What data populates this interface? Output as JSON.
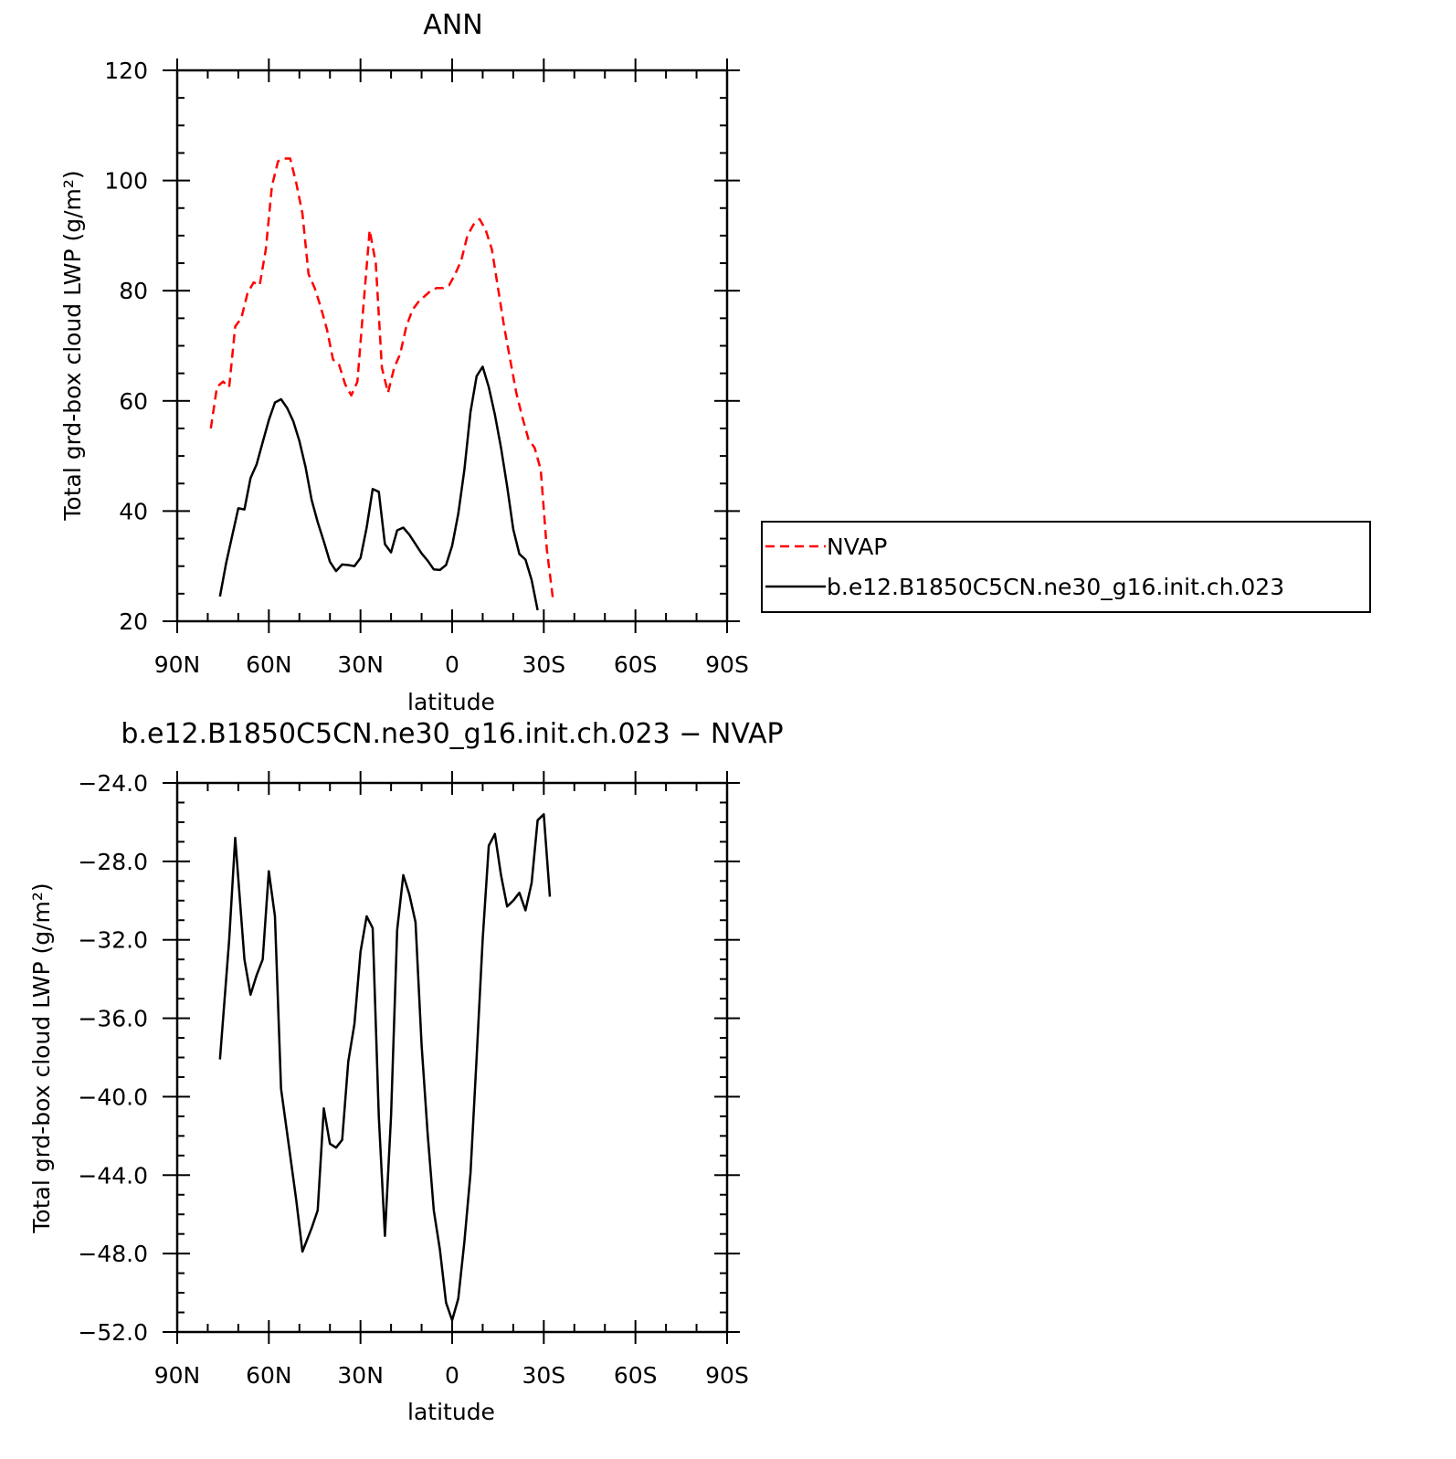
{
  "chart_data": [
    {
      "type": "line",
      "title": "ANN",
      "xlabel": "latitude",
      "ylabel": "Total grd-box cloud LWP (g/m²)",
      "x_ticks": [
        {
          "value": 90,
          "label": "90N"
        },
        {
          "value": 60,
          "label": "60N"
        },
        {
          "value": 30,
          "label": "30N"
        },
        {
          "value": 0,
          "label": "0"
        },
        {
          "value": -30,
          "label": "30S"
        },
        {
          "value": -60,
          "label": "60S"
        },
        {
          "value": -90,
          "label": "90S"
        }
      ],
      "xlim": [
        90,
        -90
      ],
      "ylim": [
        20,
        120
      ],
      "y_ticks": [
        {
          "value": 20,
          "label": "20"
        },
        {
          "value": 40,
          "label": "40"
        },
        {
          "value": 60,
          "label": "60"
        },
        {
          "value": 80,
          "label": "80"
        },
        {
          "value": 100,
          "label": "100"
        },
        {
          "value": 120,
          "label": "120"
        }
      ],
      "legend_position": "right",
      "series": [
        {
          "name": "NVAP",
          "color": "#ff0000",
          "dash": "dashed",
          "points": [
            [
              79,
              55
            ],
            [
              77,
              62.5
            ],
            [
              75,
              63.5
            ],
            [
              73,
              62.5
            ],
            [
              71,
              73.5
            ],
            [
              69,
              75
            ],
            [
              67,
              79.5
            ],
            [
              65,
              81.5
            ],
            [
              63,
              81
            ],
            [
              61,
              87.5
            ],
            [
              59,
              99
            ],
            [
              57,
              103.5
            ],
            [
              55,
              104
            ],
            [
              53,
              104
            ],
            [
              51,
              99.5
            ],
            [
              49,
              94
            ],
            [
              47,
              83
            ],
            [
              45,
              80.5
            ],
            [
              43,
              77
            ],
            [
              41,
              73
            ],
            [
              39,
              67.5
            ],
            [
              37,
              66.5
            ],
            [
              35,
              63
            ],
            [
              33,
              61
            ],
            [
              31,
              63.5
            ],
            [
              29,
              77.5
            ],
            [
              27,
              91
            ],
            [
              25,
              85
            ],
            [
              23,
              66
            ],
            [
              21,
              61.5
            ],
            [
              19,
              66
            ],
            [
              17,
              68.5
            ],
            [
              15,
              73.5
            ],
            [
              13,
              76.5
            ],
            [
              11,
              78
            ],
            [
              9,
              79
            ],
            [
              7,
              80
            ],
            [
              5,
              80.5
            ],
            [
              3,
              80.5
            ],
            [
              1,
              81
            ],
            [
              -1,
              83
            ],
            [
              -3,
              85.5
            ],
            [
              -5,
              90
            ],
            [
              -7,
              92
            ],
            [
              -9,
              93
            ],
            [
              -11,
              91
            ],
            [
              -13,
              87.5
            ],
            [
              -15,
              80.5
            ],
            [
              -17,
              73.5
            ],
            [
              -19,
              67.5
            ],
            [
              -21,
              61.5
            ],
            [
              -23,
              57
            ],
            [
              -25,
              53
            ],
            [
              -27,
              51.5
            ],
            [
              -29,
              47.5
            ],
            [
              -31,
              33
            ],
            [
              -33,
              24
            ]
          ]
        },
        {
          "name": "b.e12.B1850C5CN.ne30_g16.init.ch.023",
          "color": "#000000",
          "dash": "solid",
          "points": [
            [
              76,
              24.5
            ],
            [
              74,
              30.5
            ],
            [
              72,
              35.5
            ],
            [
              70,
              40.5
            ],
            [
              68,
              40.3
            ],
            [
              66,
              46
            ],
            [
              64,
              48.5
            ],
            [
              62,
              52.5
            ],
            [
              60,
              56.5
            ],
            [
              58,
              59.7
            ],
            [
              56,
              60.3
            ],
            [
              54,
              58.7
            ],
            [
              52,
              56.3
            ],
            [
              50,
              52.7
            ],
            [
              48,
              48
            ],
            [
              46,
              42
            ],
            [
              44,
              38
            ],
            [
              42,
              34.5
            ],
            [
              40,
              30.8
            ],
            [
              38,
              29.1
            ],
            [
              36,
              30.3
            ],
            [
              34,
              30.2
            ],
            [
              32,
              30
            ],
            [
              30,
              31.5
            ],
            [
              28,
              37
            ],
            [
              26,
              44
            ],
            [
              24,
              43.5
            ],
            [
              22,
              34
            ],
            [
              20,
              32.5
            ],
            [
              18,
              36.5
            ],
            [
              16,
              37
            ],
            [
              14,
              35.7
            ],
            [
              12,
              34
            ],
            [
              10,
              32.3
            ],
            [
              8,
              31
            ],
            [
              6,
              29.4
            ],
            [
              4,
              29.3
            ],
            [
              2,
              30.2
            ],
            [
              0,
              33.7
            ],
            [
              -2,
              39.5
            ],
            [
              -4,
              47.5
            ],
            [
              -6,
              58
            ],
            [
              -8,
              64.5
            ],
            [
              -10,
              66.2
            ],
            [
              -12,
              62.5
            ],
            [
              -14,
              57.5
            ],
            [
              -16,
              51.5
            ],
            [
              -18,
              44.5
            ],
            [
              -20,
              36.7
            ],
            [
              -22,
              32.2
            ],
            [
              -24,
              31.2
            ],
            [
              -26,
              27.5
            ],
            [
              -28,
              22
            ]
          ]
        }
      ]
    },
    {
      "type": "line",
      "title": "b.e12.B1850C5CN.ne30_g16.init.ch.023 − NVAP",
      "xlabel": "latitude",
      "ylabel": "Total grd-box cloud LWP (g/m²)",
      "x_ticks": [
        {
          "value": 90,
          "label": "90N"
        },
        {
          "value": 60,
          "label": "60N"
        },
        {
          "value": 30,
          "label": "30N"
        },
        {
          "value": 0,
          "label": "0"
        },
        {
          "value": -30,
          "label": "30S"
        },
        {
          "value": -60,
          "label": "60S"
        },
        {
          "value": -90,
          "label": "90S"
        }
      ],
      "xlim": [
        90,
        -90
      ],
      "ylim": [
        -52,
        -24
      ],
      "y_ticks": [
        {
          "value": -52,
          "label": "−52.0"
        },
        {
          "value": -48,
          "label": "−48.0"
        },
        {
          "value": -44,
          "label": "−44.0"
        },
        {
          "value": -40,
          "label": "−40.0"
        },
        {
          "value": -36,
          "label": "−36.0"
        },
        {
          "value": -32,
          "label": "−32.0"
        },
        {
          "value": -28,
          "label": "−28.0"
        },
        {
          "value": -24,
          "label": "−24.0"
        }
      ],
      "series": [
        {
          "color": "#000000",
          "dash": "solid",
          "points": [
            [
              76,
              -38.1
            ],
            [
              73,
              -32
            ],
            [
              71,
              -26.8
            ],
            [
              68,
              -33
            ],
            [
              66,
              -34.8
            ],
            [
              64,
              -33.8
            ],
            [
              62,
              -33
            ],
            [
              60,
              -28.5
            ],
            [
              58,
              -30.8
            ],
            [
              56,
              -39.6
            ],
            [
              53,
              -43
            ],
            [
              51,
              -45.3
            ],
            [
              49,
              -47.9
            ],
            [
              46,
              -46.7
            ],
            [
              44,
              -45.8
            ],
            [
              42,
              -40.6
            ],
            [
              40,
              -42.4
            ],
            [
              38,
              -42.6
            ],
            [
              36,
              -42.2
            ],
            [
              34,
              -38.2
            ],
            [
              32,
              -36.3
            ],
            [
              30,
              -32.6
            ],
            [
              28,
              -30.8
            ],
            [
              26,
              -31.4
            ],
            [
              24,
              -41
            ],
            [
              22,
              -47.1
            ],
            [
              20,
              -41
            ],
            [
              18,
              -31.5
            ],
            [
              16,
              -28.7
            ],
            [
              14,
              -29.7
            ],
            [
              12,
              -31.1
            ],
            [
              10,
              -37.4
            ],
            [
              8,
              -41.9
            ],
            [
              6,
              -45.8
            ],
            [
              4,
              -47.8
            ],
            [
              2,
              -50.5
            ],
            [
              0,
              -51.4
            ],
            [
              -2,
              -50.3
            ],
            [
              -4,
              -47.4
            ],
            [
              -6,
              -43.9
            ],
            [
              -8,
              -38
            ],
            [
              -10,
              -32
            ],
            [
              -12,
              -27.2
            ],
            [
              -14,
              -26.6
            ],
            [
              -16,
              -28.7
            ],
            [
              -18,
              -30.3
            ],
            [
              -20,
              -30
            ],
            [
              -22,
              -29.6
            ],
            [
              -24,
              -30.5
            ],
            [
              -26,
              -29.1
            ],
            [
              -28,
              -25.9
            ],
            [
              -30,
              -25.6
            ],
            [
              -32,
              -29.8
            ]
          ]
        }
      ]
    }
  ]
}
